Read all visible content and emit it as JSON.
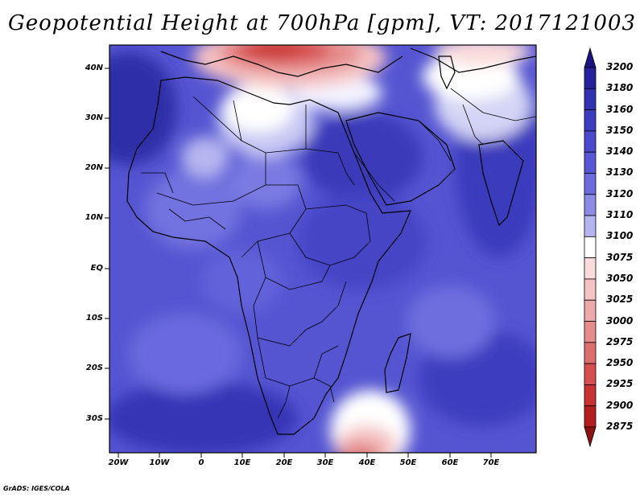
{
  "title": "Geopotential Height at 700hPa [gpm], VT: 2017121003",
  "credit": "GrADS: IGES/COLA",
  "map": {
    "lat_labels": [
      "40N",
      "30N",
      "20N",
      "10N",
      "EQ",
      "10S",
      "20S",
      "30S"
    ],
    "lon_labels": [
      "20W",
      "10W",
      "0",
      "10E",
      "20E",
      "30E",
      "40E",
      "50E",
      "60E",
      "70E"
    ]
  },
  "colorbar": {
    "levels": [
      "3200",
      "3180",
      "3160",
      "3150",
      "3140",
      "3130",
      "3120",
      "3110",
      "3100",
      "3075",
      "3050",
      "3025",
      "3000",
      "2975",
      "2950",
      "2925",
      "2900",
      "2875"
    ],
    "colors": [
      "#1a1480",
      "#26239a",
      "#3232b0",
      "#3d3dc0",
      "#4a4acc",
      "#5757d6",
      "#6c6cde",
      "#8c8ce6",
      "#b4b4f0",
      "#ffffff",
      "#fadcdc",
      "#f5c3c3",
      "#eea9a9",
      "#e68c8c",
      "#de6e6e",
      "#d64e4e",
      "#c83232",
      "#b41e1e",
      "#8c1212"
    ]
  }
}
